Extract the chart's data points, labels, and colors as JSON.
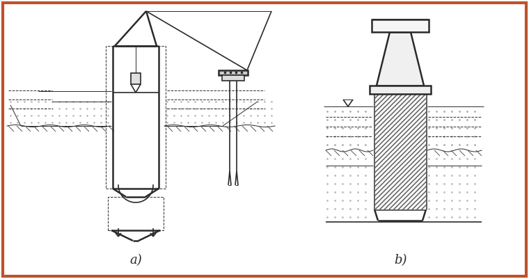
{
  "bg_color": "#ffffff",
  "border_color": "#c0522a",
  "border_lw": 3,
  "line_color": "#2a2a2a",
  "lw": 1.2,
  "lw_thick": 1.8,
  "lw_thin": 0.7,
  "label_a": "a)",
  "label_b": "b)",
  "label_fontsize": 13,
  "figsize": [
    7.6,
    4.01
  ],
  "dpi": 100
}
